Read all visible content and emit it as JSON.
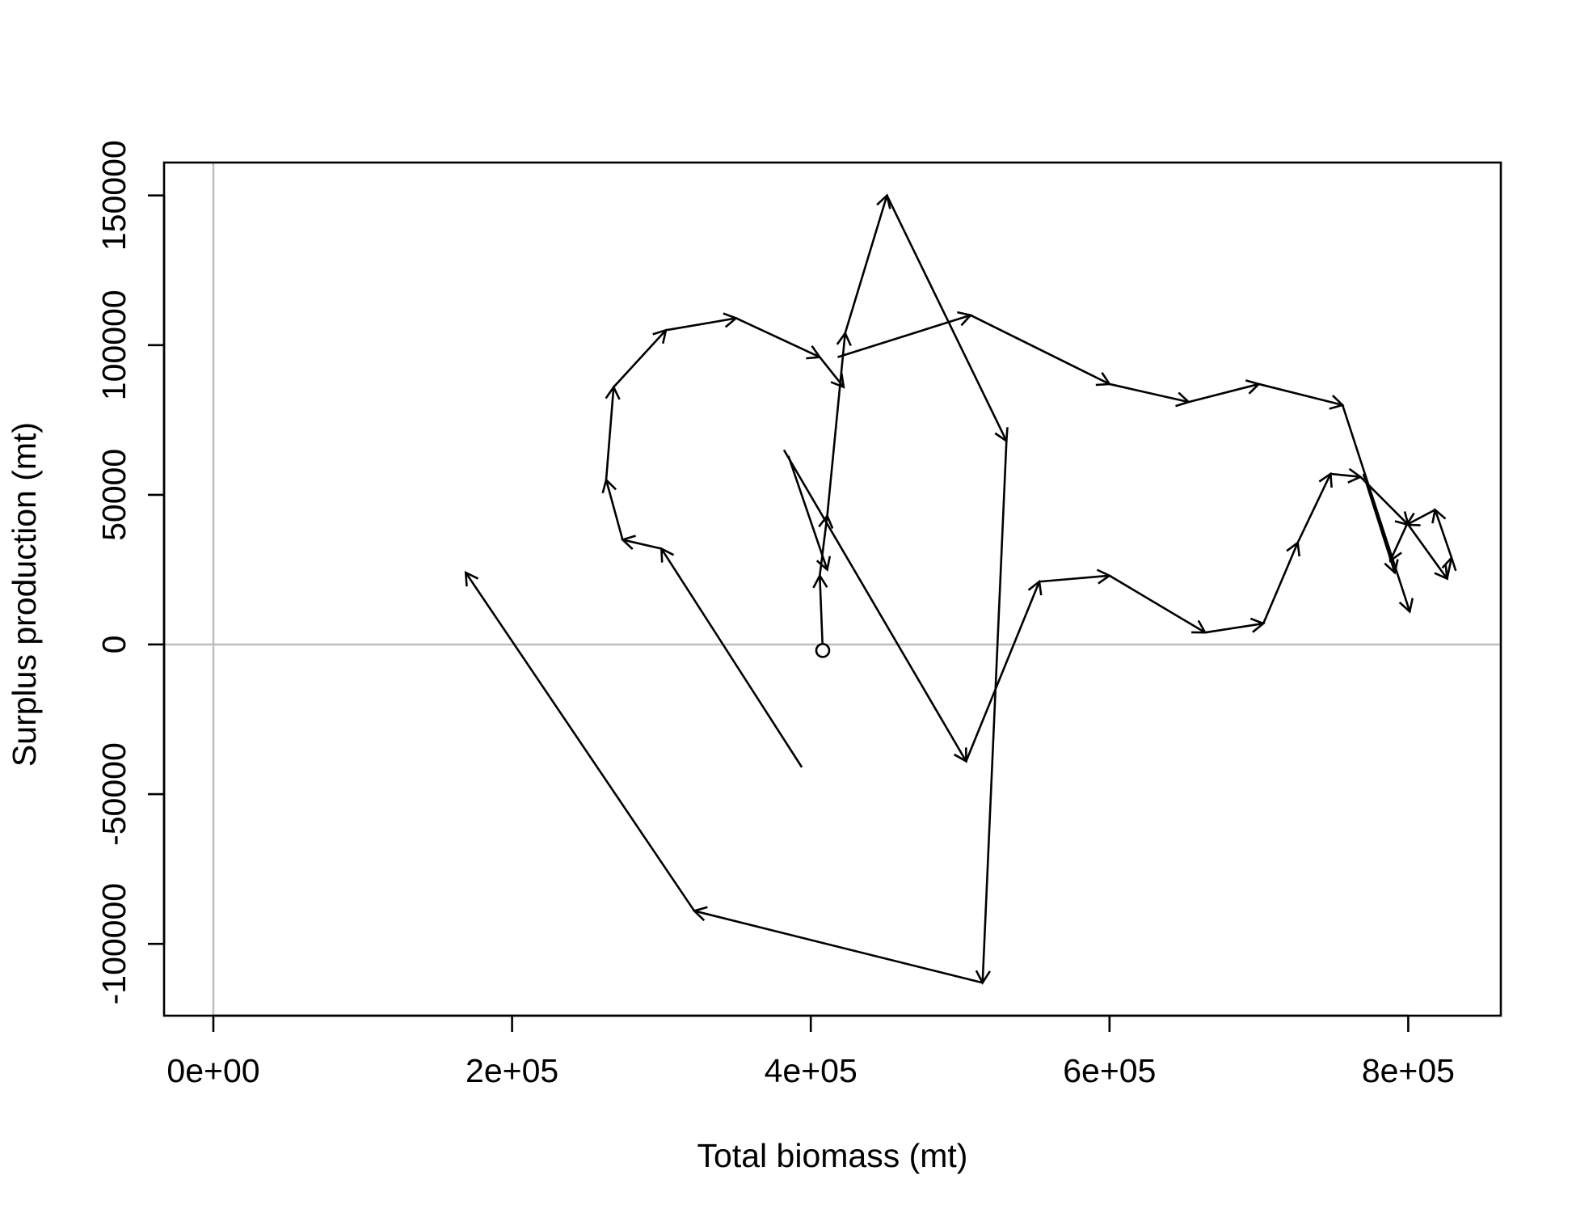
{
  "chart_data": {
    "type": "line",
    "title": "",
    "xlabel": "Total biomass (mt)",
    "ylabel": "Surplus production (mt)",
    "xlim": [
      -33000,
      862000
    ],
    "ylim": [
      -124000,
      161000
    ],
    "x_ticks": [
      {
        "value": 0,
        "label": "0e+00"
      },
      {
        "value": 200000,
        "label": "2e+05"
      },
      {
        "value": 400000,
        "label": "4e+05"
      },
      {
        "value": 600000,
        "label": "6e+05"
      },
      {
        "value": 800000,
        "label": "8e+05"
      }
    ],
    "y_ticks": [
      {
        "value": -100000,
        "label": "-100000"
      },
      {
        "value": -50000,
        "label": "-50000"
      },
      {
        "value": 0,
        "label": "0"
      },
      {
        "value": 50000,
        "label": "50000"
      },
      {
        "value": 100000,
        "label": "100000"
      },
      {
        "value": 150000,
        "label": "150000"
      }
    ],
    "reference_lines": {
      "x": 0,
      "y": 0,
      "color": "#bebebe"
    },
    "start_point": {
      "x": 408000,
      "y": -2000
    },
    "series": [
      {
        "style": "arrows",
        "color": "#000000",
        "points": [
          {
            "x": 408000,
            "y": -2000
          },
          {
            "x": 406000,
            "y": 23000
          },
          {
            "x": 411000,
            "y": 43000
          },
          {
            "x": 423000,
            "y": 104000
          },
          {
            "x": 451000,
            "y": 150000
          },
          {
            "x": 531000,
            "y": 68000
          },
          {
            "x": 515000,
            "y": -113000
          },
          {
            "x": 322000,
            "y": -89000
          },
          {
            "x": 169000,
            "y": 24000
          }
        ]
      },
      {
        "style": "arrows",
        "color": "#000000",
        "points": [
          {
            "x": 385000,
            "y": 63000
          },
          {
            "x": 411000,
            "y": 25000
          }
        ]
      },
      {
        "style": "arrows",
        "color": "#000000",
        "points": [
          {
            "x": 770000,
            "y": 57000
          },
          {
            "x": 791000,
            "y": 24000
          }
        ]
      },
      {
        "style": "arrows",
        "color": "#000000",
        "points": [
          {
            "x": 394000,
            "y": -41000
          },
          {
            "x": 300000,
            "y": 32000
          },
          {
            "x": 274000,
            "y": 35000
          },
          {
            "x": 263000,
            "y": 55000
          },
          {
            "x": 268000,
            "y": 86000
          },
          {
            "x": 303000,
            "y": 105000
          },
          {
            "x": 350000,
            "y": 109000
          },
          {
            "x": 406000,
            "y": 96000
          },
          {
            "x": 422000,
            "y": 86000
          }
        ]
      },
      {
        "style": "arrows",
        "color": "#000000",
        "points": [
          {
            "x": 418000,
            "y": 96000
          },
          {
            "x": 507000,
            "y": 110000
          },
          {
            "x": 600000,
            "y": 87000
          },
          {
            "x": 653000,
            "y": 81000
          },
          {
            "x": 700000,
            "y": 87000
          },
          {
            "x": 756000,
            "y": 80000
          },
          {
            "x": 801000,
            "y": 11000
          }
        ]
      },
      {
        "style": "arrows",
        "color": "#000000",
        "points": [
          {
            "x": 382000,
            "y": 65000
          },
          {
            "x": 504000,
            "y": -39000
          },
          {
            "x": 553000,
            "y": 21000
          },
          {
            "x": 600000,
            "y": 23000
          },
          {
            "x": 664000,
            "y": 4000
          },
          {
            "x": 703000,
            "y": 7000
          },
          {
            "x": 726000,
            "y": 34000
          },
          {
            "x": 748000,
            "y": 57000
          },
          {
            "x": 768000,
            "y": 56000
          },
          {
            "x": 800000,
            "y": 40000
          },
          {
            "x": 826000,
            "y": 22000
          },
          {
            "x": 829000,
            "y": 29000
          },
          {
            "x": 818000,
            "y": 45000
          },
          {
            "x": 799000,
            "y": 40000
          },
          {
            "x": 788000,
            "y": 28000
          }
        ]
      }
    ],
    "grid": false,
    "legend": "none"
  }
}
